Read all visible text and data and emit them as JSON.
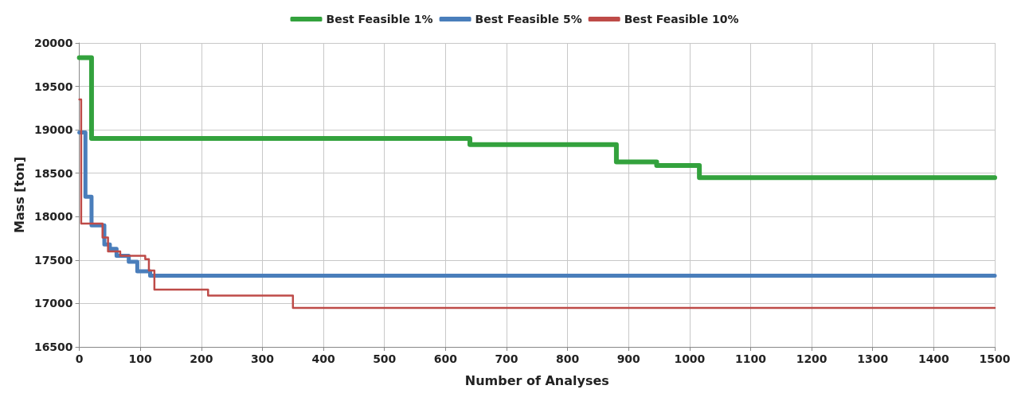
{
  "chart_data": {
    "type": "step",
    "xlabel": "Number of Analyses",
    "ylabel": "Mass [ton]",
    "xlim": [
      0,
      1500
    ],
    "xticks": [
      0,
      100,
      200,
      300,
      400,
      500,
      600,
      700,
      800,
      900,
      1000,
      1100,
      1200,
      1300,
      1400,
      1500
    ],
    "ylim": [
      16500,
      20000
    ],
    "yticks": [
      16500,
      17000,
      17500,
      18000,
      18500,
      19000,
      19500,
      20000
    ],
    "grid": true,
    "legend": "top",
    "marker": "none",
    "line_style": "solid",
    "series": [
      {
        "name": "Best Feasible 1%",
        "color": "#33a23d",
        "x": [
          0,
          20,
          640,
          880,
          946,
          1016,
          1500
        ],
        "values": [
          19830,
          18900,
          18830,
          18630,
          18590,
          18450,
          18450
        ]
      },
      {
        "name": "Best Feasible 5%",
        "color": "#4a7ebb",
        "x": [
          0,
          10,
          20,
          41,
          50,
          61,
          81,
          95,
          116,
          1500
        ],
        "values": [
          18970,
          18230,
          17900,
          17680,
          17630,
          17550,
          17480,
          17370,
          17320,
          17320
        ]
      },
      {
        "name": "Best Feasible 10%",
        "color": "#be4b48",
        "x": [
          0,
          3,
          38,
          47,
          67,
          108,
          114,
          123,
          211,
          350,
          1500
        ],
        "values": [
          19350,
          17920,
          17760,
          17600,
          17550,
          17510,
          17380,
          17160,
          17090,
          16950,
          16950
        ]
      }
    ]
  }
}
